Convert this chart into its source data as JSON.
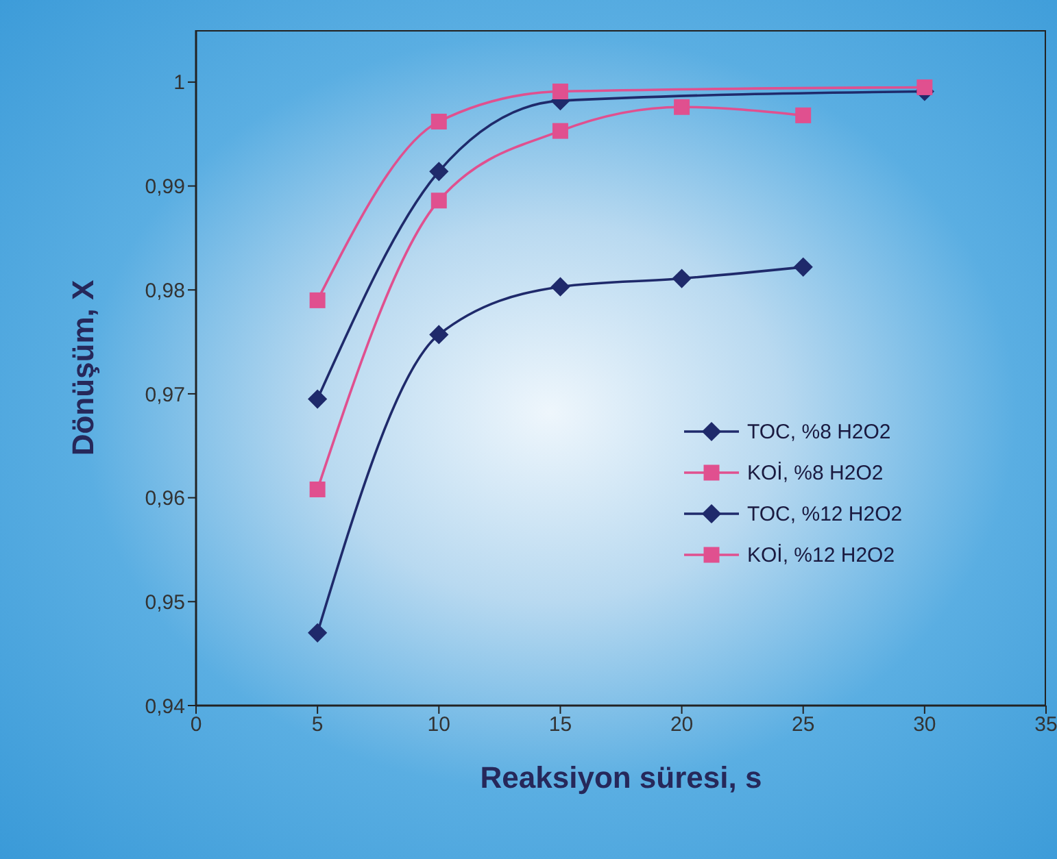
{
  "chart_data": {
    "type": "line",
    "xlabel": "Reaksiyon süresi, s",
    "ylabel": "Dönüşüm, X",
    "xlim": [
      0,
      35
    ],
    "xticks": [
      0,
      5,
      10,
      15,
      20,
      25,
      30,
      35
    ],
    "ylim": [
      0.94,
      1.005
    ],
    "yticks": [
      {
        "value": 0.94,
        "label": "0,94"
      },
      {
        "value": 0.95,
        "label": "0,95"
      },
      {
        "value": 0.96,
        "label": "0,96"
      },
      {
        "value": 0.97,
        "label": "0,97"
      },
      {
        "value": 0.98,
        "label": "0,98"
      },
      {
        "value": 0.99,
        "label": "0,99"
      },
      {
        "value": 1,
        "label": "1"
      }
    ],
    "grid": false,
    "legend": "right",
    "line_style": "solid",
    "series": [
      {
        "name": "TOC, %8 H2O2",
        "color": "#1f2a6b",
        "marker": "diamond",
        "x": [
          5,
          10,
          15,
          20,
          25
        ],
        "values": [
          0.947,
          0.9757,
          0.9803,
          0.9811,
          0.9822
        ]
      },
      {
        "name": "KOİ, %8 H2O2",
        "color": "#e0508f",
        "marker": "square",
        "x": [
          5,
          10,
          15,
          20,
          25
        ],
        "values": [
          0.9608,
          0.9886,
          0.9953,
          0.9976,
          0.9968
        ]
      },
      {
        "name": "TOC, %12 H2O2",
        "color": "#1f2a6b",
        "marker": "diamond",
        "x": [
          5,
          10,
          15,
          30
        ],
        "values": [
          0.9695,
          0.9914,
          0.9982,
          0.9991
        ]
      },
      {
        "name": "KOİ, %12 H2O2",
        "color": "#e0508f",
        "marker": "square",
        "x": [
          5,
          10,
          15,
          30
        ],
        "values": [
          0.979,
          0.9962,
          0.9991,
          0.9995
        ]
      }
    ]
  }
}
